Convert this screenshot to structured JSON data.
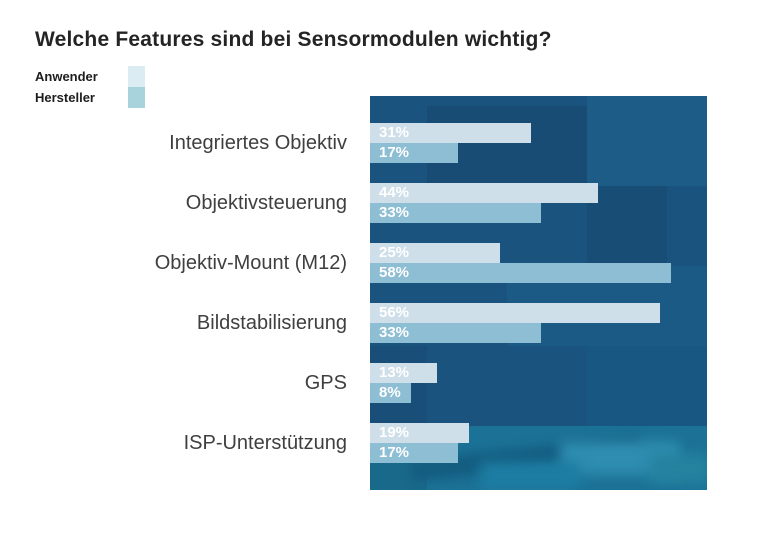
{
  "title": "Welche Features sind bei Sensormodulen wichtig?",
  "legend": {
    "items": [
      {
        "label": "Anwender",
        "color": "#dbedf3"
      },
      {
        "label": "Hersteller",
        "color": "#a8d3dd"
      }
    ]
  },
  "chart_data": {
    "type": "bar",
    "orientation": "horizontal",
    "title": "Welche Features sind bei Sensormodulen wichtig?",
    "categories": [
      "Integriertes Objektiv",
      "Objektivsteuerung",
      "Objektiv-Mount (M12)",
      "Bildstabilisierung",
      "GPS",
      "ISP-Unterstützung"
    ],
    "series": [
      {
        "name": "Anwender",
        "color": "#cfdfe9",
        "values": [
          31,
          44,
          25,
          56,
          13,
          19
        ]
      },
      {
        "name": "Hersteller",
        "color": "#8ebed3",
        "values": [
          17,
          33,
          58,
          33,
          8,
          17
        ]
      }
    ],
    "value_suffix": "%",
    "value_label_color": "#ffffff",
    "xlim": [
      0,
      65
    ],
    "grid": false,
    "legend_position": "top-left",
    "plot_background": "#1a537e",
    "plot_background_bottom": "#1b7296"
  }
}
